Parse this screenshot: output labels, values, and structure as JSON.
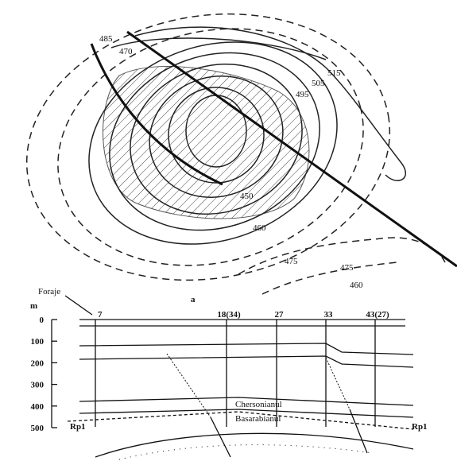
{
  "map": {
    "contour_labels": [
      "485",
      "470",
      "495",
      "505",
      "515",
      "450",
      "460",
      "475",
      "475",
      "460"
    ],
    "label": "a"
  },
  "section": {
    "drill_label": "Foraje",
    "depth_unit": "m",
    "depth_ticks": [
      "0",
      "100",
      "200",
      "300",
      "400",
      "500"
    ],
    "wells": [
      "7",
      "18(34)",
      "27",
      "33",
      "43(27)"
    ],
    "layers": [
      "Chersonianul",
      "Basarabianul"
    ],
    "profile_ends": [
      "Rp1",
      "Rp1"
    ]
  }
}
